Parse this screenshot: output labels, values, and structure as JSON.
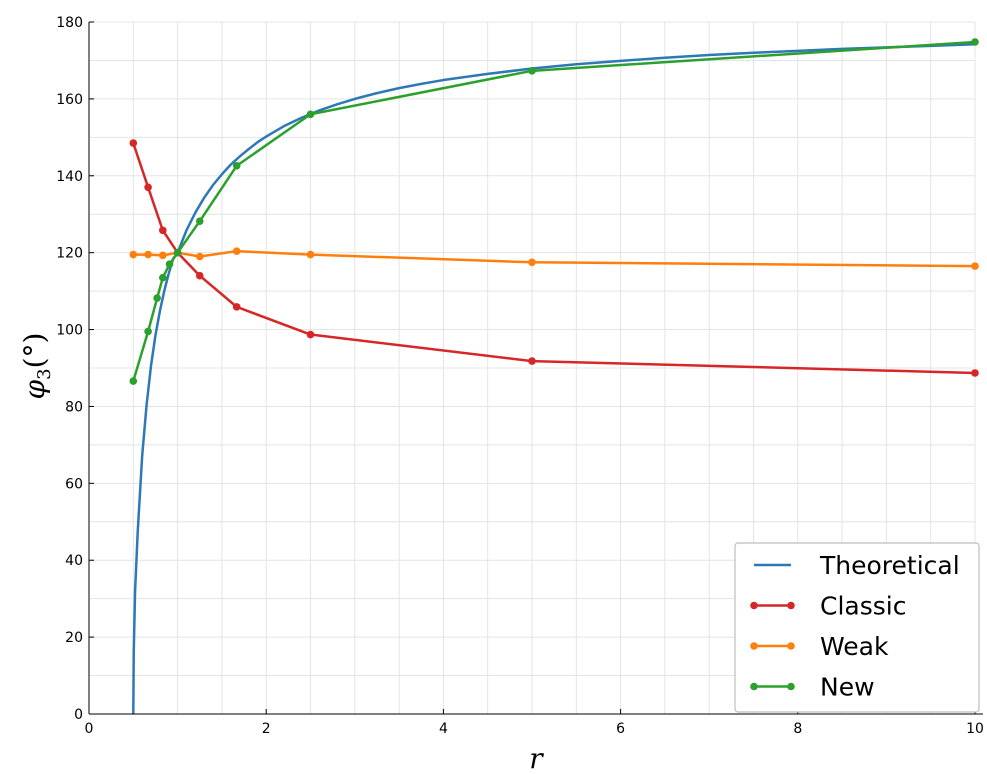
{
  "chart_data": {
    "type": "line",
    "title": "",
    "xlabel": "r",
    "ylabel_main": "φ",
    "ylabel_sub": "3",
    "ylabel_unit": "(°)",
    "xlim": [
      0,
      10
    ],
    "ylim": [
      0,
      180
    ],
    "xticks": [
      0,
      2,
      4,
      6,
      8,
      10
    ],
    "yticks": [
      0,
      20,
      40,
      60,
      80,
      100,
      120,
      140,
      160,
      180
    ],
    "grid": true,
    "legend_position": "bottom-right",
    "series": [
      {
        "name": "Theoretical",
        "color": "#2e78b7",
        "markers": false,
        "x": [
          0.5,
          0.505,
          0.52,
          0.55,
          0.6,
          0.65,
          0.7,
          0.75,
          0.8,
          0.85,
          0.9,
          0.95,
          1.0,
          1.1,
          1.2,
          1.3,
          1.4,
          1.5,
          1.6,
          1.7,
          1.8,
          1.9,
          2.0,
          2.2,
          2.4,
          2.6,
          2.8,
          3.0,
          3.25,
          3.5,
          3.75,
          4.0,
          4.5,
          5.0,
          5.5,
          6.0,
          6.5,
          7.0,
          7.5,
          8.0,
          8.5,
          9.0,
          9.5,
          10.0
        ],
        "values": [
          0,
          16.1,
          31.9,
          47.5,
          67.1,
          80.4,
          90.6,
          98.5,
          104.8,
          110.1,
          114.6,
          118.4,
          120.0,
          125.8,
          130.4,
          134.3,
          137.6,
          140.4,
          142.9,
          145.0,
          146.9,
          148.7,
          150.2,
          152.9,
          155.1,
          157.0,
          158.6,
          160.0,
          161.5,
          162.8,
          163.9,
          164.9,
          166.5,
          167.9,
          169.0,
          169.9,
          170.7,
          171.4,
          172.0,
          172.5,
          173.0,
          173.4,
          173.8,
          174.2
        ]
      },
      {
        "name": "Classic",
        "color": "#d62728",
        "markers": true,
        "x": [
          0.5,
          0.667,
          0.833,
          1.0,
          1.25,
          1.667,
          2.5,
          5.0,
          10.0
        ],
        "values": [
          148.5,
          137,
          125.8,
          120,
          114,
          105.9,
          98.7,
          91.8,
          88.7
        ]
      },
      {
        "name": "Weak",
        "color": "#ff7f0e",
        "markers": true,
        "x": [
          0.5,
          0.667,
          0.833,
          1.0,
          1.25,
          1.667,
          2.5,
          5.0,
          10.0
        ],
        "values": [
          119.5,
          119.5,
          119.3,
          120,
          119,
          120.4,
          119.5,
          117.5,
          116.5
        ]
      },
      {
        "name": "New",
        "color": "#2ca02c",
        "markers": true,
        "x": [
          0.5,
          0.667,
          0.769,
          0.833,
          0.909,
          1.0,
          1.25,
          1.667,
          2.5,
          5.0,
          10.0
        ],
        "values": [
          86.6,
          99.5,
          108.2,
          113.5,
          117,
          120,
          128.2,
          142.6,
          156,
          167.3,
          174.8
        ]
      }
    ]
  }
}
